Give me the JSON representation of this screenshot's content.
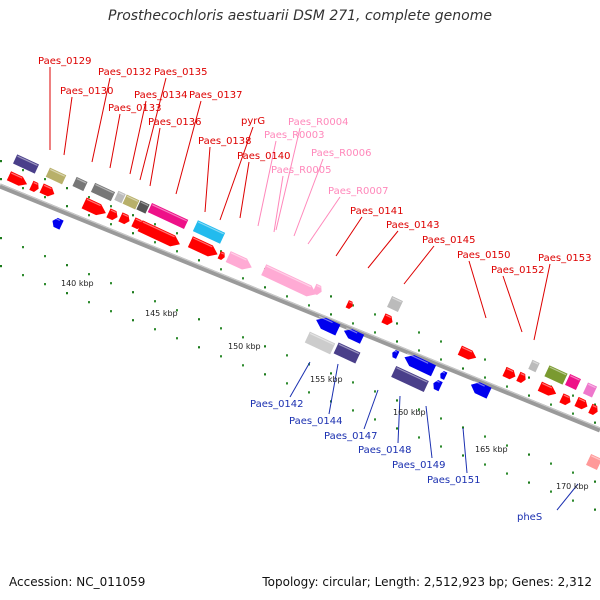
{
  "title": "Prosthecochloris aestuarii DSM 271, complete genome",
  "footer": {
    "accession": "Accession: NC_011059",
    "topology": "Topology: circular; Length: 2,512,923 bp; Genes: 2,312"
  },
  "colors": {
    "forward": "#ff0000",
    "reverse": "#0000ee",
    "rna": "#ffaad4",
    "backbone": "#8c8c8c",
    "label_forward": "#dd0000",
    "label_rna": "#ff88bb",
    "label_reverse": "#1a2fb0"
  },
  "scale_labels": [
    "140 kbp",
    "145 kbp",
    "150 kbp",
    "155 kbp",
    "160 kbp",
    "165 kbp",
    "170 kbp"
  ],
  "labels_top": [
    {
      "text": "Paes_0129",
      "kind": "forward"
    },
    {
      "text": "Paes_0130",
      "kind": "forward"
    },
    {
      "text": "Paes_0132",
      "kind": "forward"
    },
    {
      "text": "Paes_0133",
      "kind": "forward"
    },
    {
      "text": "Paes_0134",
      "kind": "forward"
    },
    {
      "text": "Paes_0135",
      "kind": "forward"
    },
    {
      "text": "Paes_0136",
      "kind": "forward"
    },
    {
      "text": "Paes_0137",
      "kind": "forward"
    },
    {
      "text": "Paes_0138",
      "kind": "forward"
    },
    {
      "text": "pyrG",
      "kind": "forward"
    },
    {
      "text": "Paes_0140",
      "kind": "forward"
    },
    {
      "text": "Paes_R0004",
      "kind": "rna"
    },
    {
      "text": "Paes_R0003",
      "kind": "rna"
    },
    {
      "text": "Paes_R0006",
      "kind": "rna"
    },
    {
      "text": "Paes_R0005",
      "kind": "rna"
    },
    {
      "text": "Paes_R0007",
      "kind": "rna"
    },
    {
      "text": "Paes_0141",
      "kind": "forward"
    },
    {
      "text": "Paes_0143",
      "kind": "forward"
    },
    {
      "text": "Paes_0145",
      "kind": "forward"
    },
    {
      "text": "Paes_0150",
      "kind": "forward"
    },
    {
      "text": "Paes_0152",
      "kind": "forward"
    },
    {
      "text": "Paes_0153",
      "kind": "forward"
    }
  ],
  "labels_bottom": [
    {
      "text": "Paes_0142",
      "kind": "reverse"
    },
    {
      "text": "Paes_0144",
      "kind": "reverse"
    },
    {
      "text": "Paes_0147",
      "kind": "reverse"
    },
    {
      "text": "Paes_0148",
      "kind": "reverse"
    },
    {
      "text": "Paes_0149",
      "kind": "reverse"
    },
    {
      "text": "Paes_0151",
      "kind": "reverse"
    },
    {
      "text": "pheS",
      "kind": "reverse"
    }
  ]
}
